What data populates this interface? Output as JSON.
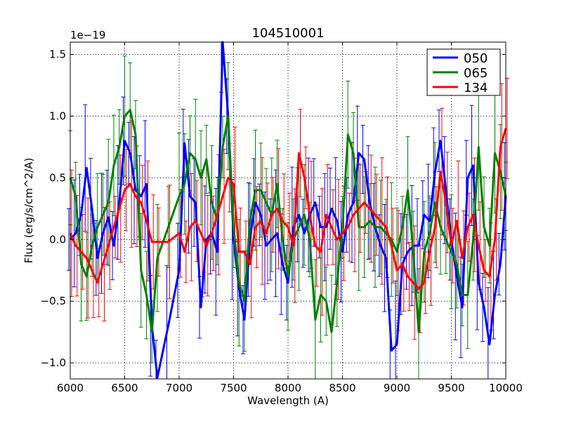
{
  "chart_data": {
    "type": "line",
    "title": "104510001",
    "xlabel": "Wavelength (A)",
    "ylabel": "Flux (erg/s/cm^2/A)",
    "y_scale_label": "1e−19",
    "xlim": [
      6000,
      10000
    ],
    "ylim": [
      -1.13,
      1.6
    ],
    "xticks": [
      6000,
      6500,
      7000,
      7500,
      8000,
      8500,
      9000,
      9500,
      10000
    ],
    "yticks": [
      -1.0,
      -0.5,
      0.0,
      0.5,
      1.0,
      1.5
    ],
    "ytick_labels": [
      "−1.0",
      "−0.5",
      "0.0",
      "0.5",
      "1.0",
      "1.5"
    ],
    "grid": true,
    "legend_position": "top-right",
    "series": [
      {
        "name": "050",
        "color": "#0000ff",
        "x": [
          6000,
          6050,
          6100,
          6150,
          6200,
          6250,
          6300,
          6350,
          6400,
          6450,
          6500,
          6550,
          6600,
          6650,
          6700,
          6750,
          6800,
          6900,
          7000,
          7050,
          7100,
          7150,
          7200,
          7250,
          7300,
          7350,
          7400,
          7450,
          7500,
          7550,
          7600,
          7650,
          7700,
          7750,
          7800,
          7850,
          7900,
          7950,
          8000,
          8050,
          8100,
          8150,
          8200,
          8250,
          8300,
          8350,
          8400,
          8450,
          8500,
          8550,
          8600,
          8650,
          8700,
          8750,
          8800,
          8850,
          8900,
          8950,
          9000,
          9050,
          9100,
          9150,
          9200,
          9250,
          9300,
          9350,
          9400,
          9450,
          9500,
          9550,
          9600,
          9650,
          9700,
          9750,
          9800,
          9850,
          9900,
          9950,
          10000
        ],
        "values": [
          0.0,
          0.05,
          0.2,
          0.58,
          0.25,
          -0.15,
          0.05,
          0.18,
          -0.05,
          0.3,
          0.8,
          0.7,
          0.4,
          0.35,
          0.45,
          -0.7,
          -1.12,
          -0.7,
          -0.25,
          0.78,
          0.35,
          0.3,
          -0.55,
          0.0,
          0.05,
          -0.1,
          1.6,
          1.0,
          0.0,
          -0.4,
          -0.65,
          0.0,
          0.3,
          0.2,
          -0.05,
          0.0,
          0.05,
          -0.2,
          -0.35,
          0.1,
          0.2,
          0.05,
          0.2,
          0.3,
          0.1,
          0.1,
          0.25,
          0.15,
          -0.1,
          0.2,
          0.3,
          0.7,
          0.65,
          0.3,
          0.1,
          -0.05,
          -0.15,
          -0.9,
          -0.85,
          -0.2,
          -0.1,
          -0.05,
          -0.05,
          0.2,
          0.15,
          0.55,
          0.8,
          0.4,
          0.0,
          -0.3,
          -0.55,
          0.5,
          0.6,
          -0.35,
          -0.55,
          -0.85,
          -0.45,
          -0.2,
          0.35
        ]
      },
      {
        "name": "065",
        "color": "#008000",
        "x": [
          6000,
          6050,
          6100,
          6150,
          6200,
          6250,
          6300,
          6350,
          6400,
          6450,
          6500,
          6550,
          6600,
          6650,
          6700,
          6750,
          6800,
          6900,
          7000,
          7050,
          7100,
          7150,
          7200,
          7250,
          7300,
          7350,
          7400,
          7450,
          7500,
          7550,
          7600,
          7650,
          7700,
          7750,
          7800,
          7850,
          7900,
          7950,
          8000,
          8050,
          8100,
          8150,
          8200,
          8250,
          8300,
          8350,
          8400,
          8450,
          8500,
          8550,
          8600,
          8650,
          8700,
          8750,
          8800,
          8850,
          8900,
          8950,
          9000,
          9050,
          9100,
          9150,
          9200,
          9250,
          9300,
          9350,
          9400,
          9450,
          9500,
          9550,
          9600,
          9650,
          9700,
          9750,
          9800,
          9850,
          9900,
          9950,
          10000
        ],
        "values": [
          0.5,
          0.35,
          -0.2,
          -0.3,
          -0.05,
          0.1,
          0.2,
          0.3,
          0.6,
          0.75,
          1.0,
          1.05,
          0.85,
          -0.25,
          -0.45,
          -0.75,
          -0.15,
          0.1,
          0.35,
          0.45,
          0.7,
          0.65,
          0.5,
          0.65,
          0.3,
          0.15,
          0.75,
          1.0,
          0.1,
          -0.35,
          -0.5,
          0.15,
          0.4,
          0.4,
          0.3,
          0.2,
          0.45,
          0.0,
          -0.3,
          0.0,
          0.1,
          0.2,
          0.0,
          -0.65,
          -0.45,
          -0.5,
          -0.75,
          -0.35,
          0.1,
          0.85,
          0.7,
          0.1,
          0.1,
          0.15,
          0.1,
          0.1,
          0.05,
          0.0,
          -0.1,
          0.1,
          0.4,
          -0.1,
          -0.75,
          -0.1,
          0.05,
          0.3,
          0.1,
          0.0,
          -0.1,
          -0.2,
          -0.45,
          -0.45,
          0.0,
          0.75,
          0.1,
          -0.05,
          0.7,
          0.55,
          0.35
        ]
      },
      {
        "name": "134",
        "color": "#ff0000",
        "x": [
          6000,
          6050,
          6100,
          6150,
          6200,
          6250,
          6300,
          6350,
          6400,
          6450,
          6500,
          6550,
          6600,
          6650,
          6700,
          6750,
          6800,
          6900,
          7000,
          7050,
          7100,
          7150,
          7200,
          7250,
          7300,
          7350,
          7400,
          7450,
          7500,
          7550,
          7600,
          7650,
          7700,
          7750,
          7800,
          7850,
          7900,
          7950,
          8000,
          8050,
          8100,
          8150,
          8200,
          8250,
          8300,
          8350,
          8400,
          8450,
          8500,
          8550,
          8600,
          8650,
          8700,
          8750,
          8800,
          8850,
          8900,
          8950,
          9000,
          9050,
          9100,
          9150,
          9200,
          9250,
          9300,
          9350,
          9400,
          9450,
          9500,
          9550,
          9600,
          9650,
          9700,
          9750,
          9800,
          9850,
          9900,
          9950,
          10000
        ],
        "values": [
          0.05,
          -0.05,
          -0.1,
          -0.15,
          -0.25,
          -0.35,
          -0.2,
          -0.05,
          0.1,
          0.25,
          0.4,
          0.45,
          0.35,
          0.3,
          0.15,
          -0.02,
          -0.02,
          -0.02,
          0.05,
          -0.1,
          0.1,
          0.15,
          0.05,
          -0.05,
          0.05,
          0.2,
          0.35,
          0.5,
          0.45,
          -0.1,
          -0.1,
          -0.2,
          0.1,
          0.15,
          0.05,
          0.2,
          0.25,
          0.15,
          0.1,
          -0.05,
          0.7,
          0.5,
          0.2,
          -0.05,
          -0.1,
          0.2,
          0.1,
          0.0,
          0.05,
          0.1,
          0.2,
          0.25,
          0.3,
          0.25,
          0.2,
          0.15,
          0.1,
          -0.05,
          -0.25,
          -0.2,
          -0.3,
          -0.35,
          -0.4,
          -0.35,
          -0.1,
          0.1,
          0.55,
          0.3,
          -0.05,
          0.15,
          -0.15,
          0.1,
          0.2,
          -0.05,
          -0.25,
          -0.3,
          0.0,
          0.75,
          0.9
        ]
      }
    ]
  }
}
